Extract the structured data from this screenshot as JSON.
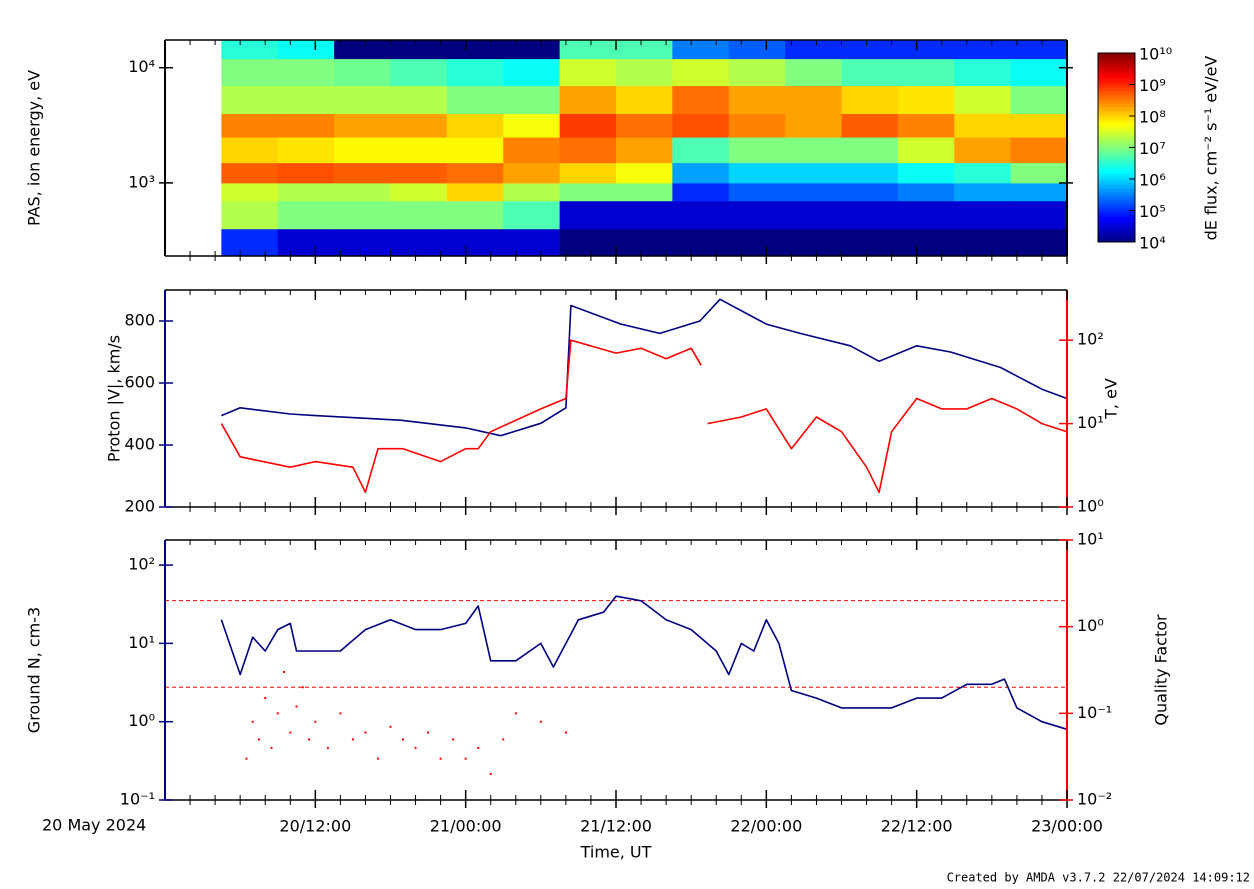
{
  "x_axis": {
    "label": "Time, UT",
    "date": "20 May 2024",
    "xlim": [
      0,
      72
    ],
    "xticks": [
      {
        "value": 12,
        "label": "20/12:00"
      },
      {
        "value": 24,
        "label": "21/00:00"
      },
      {
        "value": 36,
        "label": "21/12:00"
      },
      {
        "value": 48,
        "label": "22/00:00"
      },
      {
        "value": 60,
        "label": "22/12:00"
      },
      {
        "value": 72,
        "label": "23/00:00"
      }
    ],
    "xminorticks": [
      2,
      4,
      6,
      8,
      10,
      14,
      16,
      18,
      20,
      22,
      26,
      28,
      30,
      32,
      34,
      38,
      40,
      42,
      44,
      46,
      50,
      52,
      54,
      56,
      58,
      62,
      64,
      66,
      68,
      70
    ]
  },
  "footer": "Created by AMDA v3.7.2 22/07/2024 14:09:12",
  "chart_data": [
    {
      "type": "heatmap",
      "ylabel": "PAS, ion energy, eV",
      "ylog": true,
      "ylim": [
        232,
        17400
      ],
      "yticks": [
        {
          "value": 1000,
          "label": "10³"
        },
        {
          "value": 10000,
          "label": "10⁴"
        }
      ],
      "x_edges": [
        4.5,
        9,
        13.5,
        18,
        22.5,
        27,
        31.5,
        36,
        40.5,
        45,
        49.5,
        54,
        58.5,
        63,
        67.5,
        72
      ],
      "y_edges": [
        232,
        400,
        700,
        1000,
        1500,
        2500,
        4000,
        7000,
        12000,
        17400
      ],
      "values": [
        [
          100000.0,
          20000000.0,
          30000000.0,
          500000000.0,
          100000000.0,
          300000000.0,
          20000000.0,
          10000000.0,
          3000000.0
        ],
        [
          30000.0,
          10000000.0,
          20000000.0,
          600000000.0,
          80000000.0,
          300000000.0,
          20000000.0,
          10000000.0,
          2000000.0
        ],
        [
          30000.0,
          10000000.0,
          20000000.0,
          500000000.0,
          60000000.0,
          200000000.0,
          20000000.0,
          8000000.0,
          10000.0
        ],
        [
          30000.0,
          10000000.0,
          30000000.0,
          500000000.0,
          60000000.0,
          200000000.0,
          20000000.0,
          5000000.0,
          10000.0
        ],
        [
          30000.0,
          10000000.0,
          100000000.0,
          400000000.0,
          60000000.0,
          100000000.0,
          10000000.0,
          3000000.0,
          10000.0
        ],
        [
          30000.0,
          5000000.0,
          20000000.0,
          200000000.0,
          300000000.0,
          50000000.0,
          10000000.0,
          2000000.0,
          10000.0
        ],
        [
          10000.0,
          30000.0,
          10000000.0,
          100000000.0,
          400000000.0,
          800000000.0,
          200000000.0,
          30000000.0,
          5000000.0
        ],
        [
          10000.0,
          30000.0,
          10000000.0,
          50000000.0,
          200000000.0,
          400000000.0,
          100000000.0,
          20000000.0,
          5000000.0
        ],
        [
          10000.0,
          30000.0,
          100000.0,
          500000.0,
          5000000.0,
          600000000.0,
          400000000.0,
          30000000.0,
          300000.0
        ],
        [
          10000.0,
          30000.0,
          200000.0,
          1000000.0,
          10000000.0,
          300000000.0,
          200000000.0,
          20000000.0,
          200000.0
        ],
        [
          10000.0,
          30000.0,
          200000.0,
          1000000.0,
          10000000.0,
          200000000.0,
          200000000.0,
          10000000.0,
          100000.0
        ],
        [
          10000.0,
          30000.0,
          200000.0,
          1000000.0,
          10000000.0,
          500000000.0,
          100000000.0,
          5000000.0,
          100000.0
        ],
        [
          10000.0,
          30000.0,
          300000.0,
          2000000.0,
          30000000.0,
          300000000.0,
          80000000.0,
          5000000.0,
          100000.0
        ],
        [
          10000.0,
          30000.0,
          500000.0,
          3000000.0,
          200000000.0,
          100000000.0,
          30000000.0,
          3000000.0,
          100000.0
        ],
        [
          10000.0,
          30000.0,
          500000.0,
          10000000.0,
          300000000.0,
          100000000.0,
          10000000.0,
          2000000.0,
          100000.0
        ]
      ],
      "colormap": "jet",
      "clim": [
        10000.0,
        10000000000.0
      ],
      "colorbar_label": "dE flux, cm⁻² s⁻¹ eV/eV",
      "colorbar_ticks": [
        {
          "value": 10000.0,
          "label": "10⁴"
        },
        {
          "value": 100000.0,
          "label": "10⁵"
        },
        {
          "value": 1000000.0,
          "label": "10⁶"
        },
        {
          "value": 10000000.0,
          "label": "10⁷"
        },
        {
          "value": 100000000.0,
          "label": "10⁸"
        },
        {
          "value": 1000000000.0,
          "label": "10⁹"
        },
        {
          "value": 10000000000.0,
          "label": "10¹⁰"
        }
      ]
    },
    {
      "type": "line",
      "ylabel": "Proton |V|, km/s",
      "y2label": "T, eV",
      "ylim": [
        200,
        900
      ],
      "yticks": [
        200,
        400,
        600,
        800
      ],
      "y2log": true,
      "y2lim": [
        1,
        400
      ],
      "y2ticks": [
        {
          "value": 1,
          "label": "10⁰"
        },
        {
          "value": 10,
          "label": "10¹"
        },
        {
          "value": 100,
          "label": "10²"
        }
      ],
      "series": [
        {
          "color": "#000080",
          "x": [
            4.5,
            6,
            10,
            12,
            18.8,
            24,
            26.8,
            30,
            32,
            32.4,
            36.4,
            39.5,
            42.7,
            44.3,
            48,
            50.7,
            54.7,
            57,
            60,
            62.7,
            66.7,
            70,
            72
          ],
          "values": [
            495,
            520,
            500,
            495,
            480,
            455,
            430,
            470,
            520,
            850,
            790,
            760,
            800,
            870,
            790,
            760,
            720,
            670,
            720,
            700,
            650,
            580,
            550
          ]
        },
        {
          "color": "#ff0000",
          "axis": "y2",
          "x": [
            4.5,
            6,
            10,
            12,
            15,
            16,
            17,
            19,
            22,
            24,
            25,
            26,
            30,
            32,
            32.4,
            36,
            38,
            40,
            42,
            42.8,
            43.1,
            43.3,
            46,
            48,
            50,
            52,
            54,
            56,
            57,
            58,
            60,
            62,
            64,
            66,
            68,
            70,
            72
          ],
          "values": [
            10,
            4,
            3,
            3.5,
            3,
            1.5,
            5,
            5,
            3.5,
            5,
            5,
            8,
            15,
            20,
            100,
            70,
            80,
            60,
            80,
            50,
            null,
            10,
            12,
            15,
            5,
            12,
            8,
            3,
            1.5,
            8,
            20,
            15,
            15,
            20,
            15,
            10,
            8
          ]
        }
      ]
    },
    {
      "type": "line",
      "ylabel": "Ground N, cm-3",
      "y2label": "Quality Factor",
      "ylog": true,
      "ylim": [
        0.1,
        209
      ],
      "yticks": [
        {
          "value": 0.1,
          "label": "10⁻¹"
        },
        {
          "value": 1,
          "label": "10⁰"
        },
        {
          "value": 10,
          "label": "10¹"
        },
        {
          "value": 100,
          "label": "10²"
        }
      ],
      "y2log": true,
      "y2lim": [
        0.01,
        10
      ],
      "y2ticks": [
        {
          "value": 0.01,
          "label": "10⁻²"
        },
        {
          "value": 0.1,
          "label": "10⁻¹"
        },
        {
          "value": 1,
          "label": "10⁰"
        },
        {
          "value": 10,
          "label": "10¹"
        }
      ],
      "y2_reflines": [
        2,
        0.2
      ],
      "series": [
        {
          "color": "#000080",
          "x": [
            4.5,
            6,
            7,
            8,
            9,
            10,
            10.5,
            12,
            14,
            16,
            18,
            20,
            22,
            24,
            25,
            26,
            28,
            30,
            31,
            32,
            33,
            35,
            36,
            38,
            40,
            42,
            44,
            45,
            46,
            47,
            48,
            49,
            50,
            52,
            54,
            56,
            58,
            60,
            62,
            64,
            66,
            67,
            68,
            70,
            72
          ],
          "values": [
            20,
            4,
            12,
            8,
            15,
            18,
            8,
            8,
            8,
            15,
            20,
            15,
            15,
            18,
            30,
            6,
            6,
            10,
            5,
            10,
            20,
            25,
            40,
            35,
            20,
            15,
            8,
            4,
            10,
            8,
            20,
            10,
            2.5,
            2,
            1.5,
            1.5,
            1.5,
            2,
            2,
            3,
            3,
            3.5,
            1.5,
            1,
            0.8
          ]
        },
        {
          "color": "#ff0000",
          "axis": "y2",
          "mode": "points",
          "x": [
            6.5,
            7,
            7.5,
            8,
            8.5,
            9,
            9.5,
            10,
            10.5,
            11,
            11.5,
            12,
            13,
            14,
            15,
            16,
            17,
            18,
            19,
            20,
            21,
            22,
            23,
            24,
            25,
            26,
            27,
            28,
            30,
            32
          ],
          "values": [
            0.03,
            0.08,
            0.05,
            0.15,
            0.04,
            0.1,
            0.3,
            0.06,
            0.12,
            0.2,
            0.05,
            0.08,
            0.04,
            0.1,
            0.05,
            0.06,
            0.03,
            0.07,
            0.05,
            0.04,
            0.06,
            0.03,
            0.05,
            0.03,
            0.04,
            0.02,
            0.05,
            0.1,
            0.08,
            0.06
          ]
        }
      ]
    }
  ]
}
